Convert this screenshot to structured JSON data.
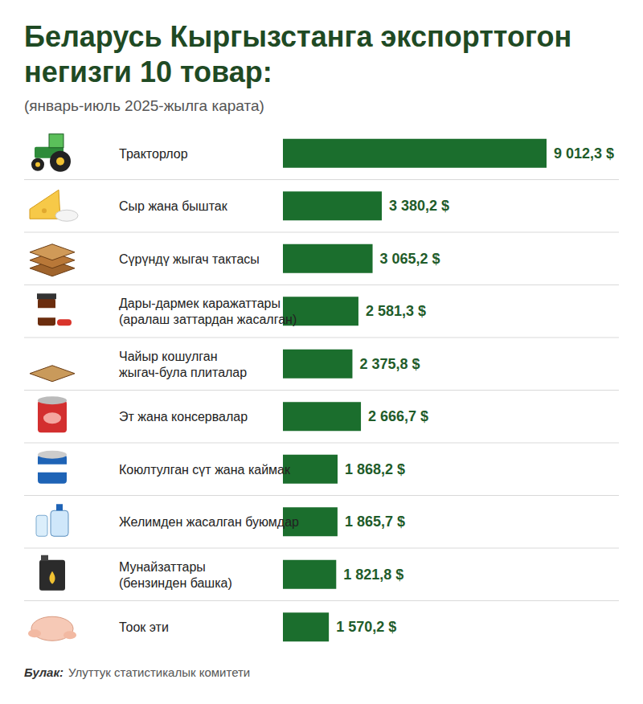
{
  "chart_data": {
    "type": "bar",
    "orientation": "horizontal",
    "title": "Беларусь Кыргызстанга экспорттогон\nнегизги 10 товар:",
    "subtitle": "(январь-июль 2025-жылга карата)",
    "categories": [
      "Тракторлор",
      "Сыр жана быштак",
      "Сүрүндү жыгач тактасы",
      "Дары-дармек каражаттары\n(аралаш заттардан жасалган)",
      "Чайыр кошулган\nжыгач-була плиталар",
      "Эт жана консервалар",
      "Коюлтулган сүт жана каймак",
      "Желимден жасалган буюмдар",
      "Мунайзаттары\n(бензинден башка)",
      "Тоок эти"
    ],
    "values": [
      9012.3,
      3380.2,
      3065.2,
      2581.3,
      2375.8,
      2666.7,
      1868.2,
      1865.7,
      1821.8,
      1570.2
    ],
    "value_labels": [
      "9 012,3 $",
      "3 380,2 $",
      "3 065,2 $",
      "2 581,3 $",
      "2 375,8 $",
      "2 666,7 $",
      "1 868,2 $",
      "1 865,7 $",
      "1 821,8 $",
      "1 570,2 $"
    ],
    "color": "#1b6e2d",
    "xlim": [
      0,
      9012.3
    ],
    "data_labels": true,
    "tick_labels": false,
    "grid": false,
    "source_label": "Булак:",
    "source": "Улуттук статистикалык комитети"
  }
}
